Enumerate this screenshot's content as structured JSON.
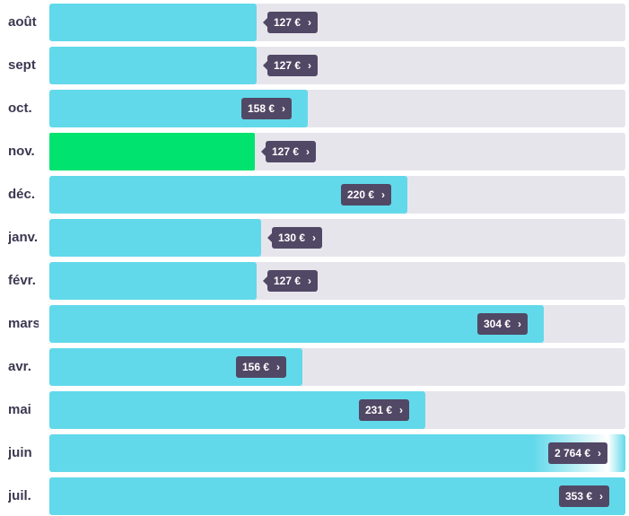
{
  "colors": {
    "bar": "#62d9ea",
    "selected_bar": "#00e36e",
    "track": "#e7e5ec",
    "tag": "#514865"
  },
  "chart_data": {
    "type": "bar",
    "orientation": "horizontal",
    "categories": [
      "août",
      "sept",
      "oct.",
      "nov.",
      "déc.",
      "janv.",
      "févr.",
      "mars",
      "avr.",
      "mai",
      "juin",
      "juil."
    ],
    "values": [
      127,
      127,
      158,
      127,
      220,
      130,
      127,
      304,
      156,
      231,
      2764,
      353
    ],
    "value_labels": [
      "127 €",
      "127 €",
      "158 €",
      "127 €",
      "220 €",
      "130 €",
      "127 €",
      "304 €",
      "156 €",
      "231 €",
      "2 764 €",
      "353 €"
    ],
    "fill_fractions": [
      0.36,
      0.36,
      0.448,
      0.357,
      0.621,
      0.368,
      0.36,
      0.859,
      0.44,
      0.653,
      1.0,
      1.0
    ],
    "selected_index": 3,
    "chevron_glyph": "›"
  }
}
